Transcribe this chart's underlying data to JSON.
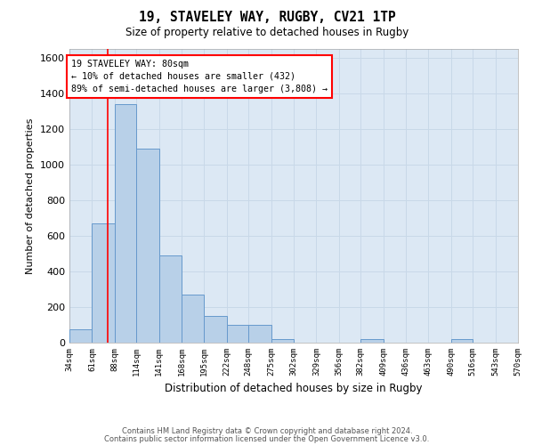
{
  "title1": "19, STAVELEY WAY, RUGBY, CV21 1TP",
  "title2": "Size of property relative to detached houses in Rugby",
  "xlabel": "Distribution of detached houses by size in Rugby",
  "ylabel": "Number of detached properties",
  "annotation_text": "19 STAVELEY WAY: 80sqm\n← 10% of detached houses are smaller (432)\n89% of semi-detached houses are larger (3,808) →",
  "footer1": "Contains HM Land Registry data © Crown copyright and database right 2024.",
  "footer2": "Contains public sector information licensed under the Open Government Licence v3.0.",
  "bar_color": "#b8d0e8",
  "bar_edge_color": "#6699cc",
  "grid_color": "#c8d8e8",
  "background_color": "#dce8f4",
  "red_line_x": 80,
  "bin_edges": [
    34,
    61,
    88,
    114,
    141,
    168,
    195,
    222,
    248,
    275,
    302,
    329,
    356,
    382,
    409,
    436,
    463,
    490,
    516,
    543,
    570
  ],
  "bin_counts": [
    75,
    670,
    1340,
    1090,
    490,
    270,
    150,
    100,
    100,
    20,
    0,
    0,
    0,
    20,
    0,
    0,
    0,
    20,
    0,
    0
  ],
  "ylim": [
    0,
    1650
  ],
  "yticks": [
    0,
    200,
    400,
    600,
    800,
    1000,
    1200,
    1400,
    1600
  ]
}
